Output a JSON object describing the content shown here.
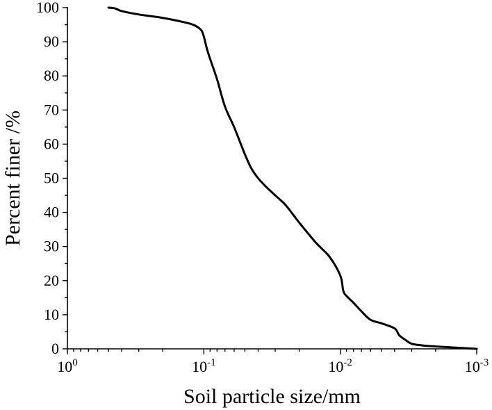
{
  "chart_data": {
    "type": "line",
    "xlabel": "Soil particle size/mm",
    "ylabel": "Percent finer /%",
    "x_scale": "log",
    "x_reversed": true,
    "xlim": [
      1,
      0.001
    ],
    "ylim": [
      0,
      100
    ],
    "x_ticks": [
      {
        "value": 1,
        "base": "10",
        "exp": "0"
      },
      {
        "value": 0.1,
        "base": "10",
        "exp": "-1"
      },
      {
        "value": 0.01,
        "base": "10",
        "exp": "-2"
      },
      {
        "value": 0.001,
        "base": "10",
        "exp": "-3"
      }
    ],
    "y_ticks": [
      0,
      10,
      20,
      30,
      40,
      50,
      60,
      70,
      80,
      90,
      100
    ],
    "grid": false,
    "series": [
      {
        "x": [
          0.5,
          0.45,
          0.4,
          0.3,
          0.2,
          0.15,
          0.12,
          0.105,
          0.1,
          0.095,
          0.09,
          0.08,
          0.07,
          0.06,
          0.05,
          0.045,
          0.04,
          0.035,
          0.03,
          0.025,
          0.02,
          0.015,
          0.012,
          0.01,
          0.0095,
          0.009,
          0.008,
          0.007,
          0.006,
          0.005,
          0.004,
          0.0037,
          0.0033,
          0.003,
          0.0025,
          0.002,
          0.0015,
          0.001
        ],
        "y": [
          100,
          99.8,
          99,
          98,
          97,
          96,
          95,
          93.5,
          91.5,
          88,
          85,
          79,
          71,
          65,
          57,
          53,
          50,
          47.5,
          45,
          42,
          37,
          31,
          27,
          21.5,
          17,
          15.5,
          13.5,
          11,
          8.5,
          7.5,
          6,
          4,
          2.5,
          1.5,
          1,
          0.7,
          0.4,
          0
        ]
      }
    ]
  }
}
